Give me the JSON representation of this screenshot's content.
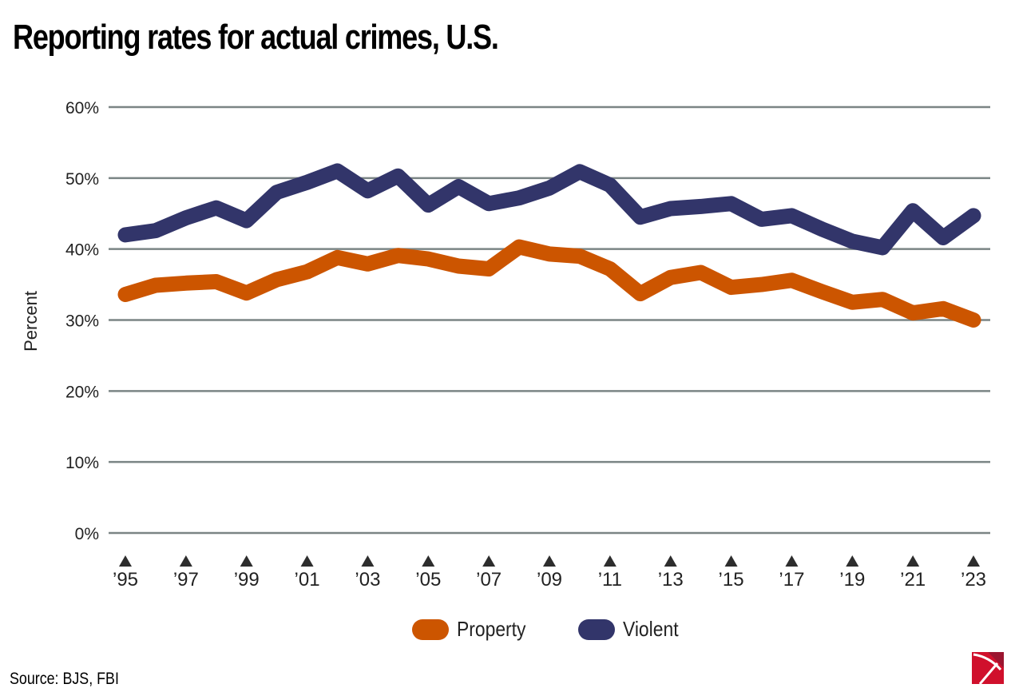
{
  "title": "Reporting rates for actual crimes, U.S.",
  "source": "Source: BJS, FBI",
  "logo": "pickaxe-logo",
  "chart_data": {
    "type": "line",
    "title": "Reporting rates for actual crimes, U.S.",
    "xlabel": "",
    "ylabel": "Percent",
    "ylim": [
      0,
      60
    ],
    "yticks": [
      0,
      10,
      20,
      30,
      40,
      50,
      60
    ],
    "ytick_labels": [
      "0%",
      "10%",
      "20%",
      "30%",
      "40%",
      "50%",
      "60%"
    ],
    "grid": true,
    "legend_position": "bottom-center",
    "x": [
      1995,
      1996,
      1997,
      1998,
      1999,
      2000,
      2001,
      2002,
      2003,
      2004,
      2005,
      2006,
      2007,
      2008,
      2009,
      2010,
      2011,
      2012,
      2013,
      2014,
      2015,
      2016,
      2017,
      2018,
      2019,
      2020,
      2021,
      2022,
      2023
    ],
    "xticks": [
      1995,
      1997,
      1999,
      2001,
      2003,
      2005,
      2007,
      2009,
      2011,
      2013,
      2015,
      2017,
      2019,
      2021,
      2023
    ],
    "xtick_labels": [
      "’95",
      "’97",
      "’99",
      "’01",
      "’03",
      "’05",
      "’07",
      "’09",
      "’11",
      "’13",
      "’15",
      "’17",
      "’19",
      "’21",
      "’23"
    ],
    "series": [
      {
        "name": "Property",
        "color": "#cc5500",
        "values": [
          33.6,
          34.9,
          35.2,
          35.4,
          33.8,
          35.7,
          36.8,
          38.8,
          37.9,
          39.1,
          38.6,
          37.6,
          37.2,
          40.3,
          39.3,
          39.0,
          37.2,
          33.7,
          36.0,
          36.7,
          34.6,
          35.0,
          35.6,
          34.0,
          32.5,
          32.9,
          31.0,
          31.6,
          30.0
        ]
      },
      {
        "name": "Violent",
        "color": "#32356a",
        "values": [
          42.0,
          42.6,
          44.4,
          45.8,
          44.0,
          48.0,
          49.4,
          51.0,
          48.2,
          50.3,
          46.2,
          48.8,
          46.4,
          47.2,
          48.6,
          50.9,
          49.0,
          44.5,
          45.7,
          46.0,
          46.4,
          44.2,
          44.7,
          42.8,
          41.1,
          40.2,
          45.4,
          41.6,
          44.7
        ]
      }
    ]
  }
}
